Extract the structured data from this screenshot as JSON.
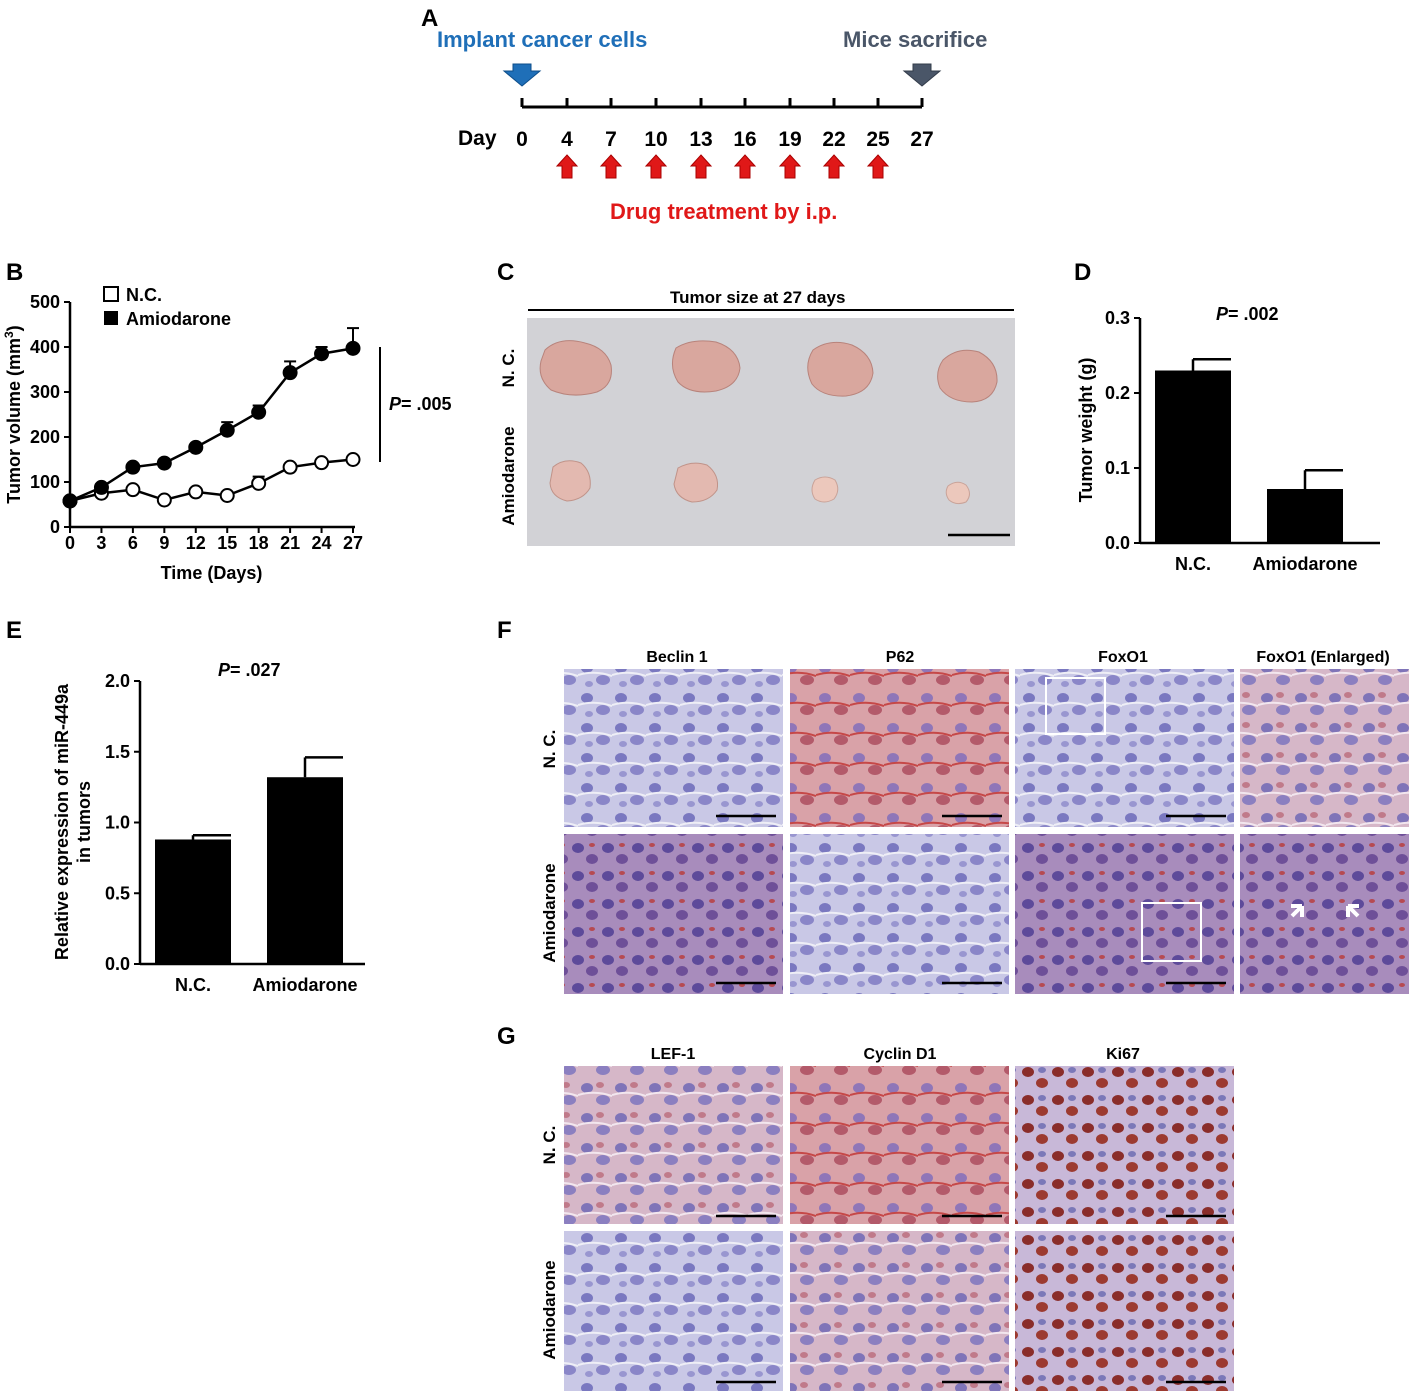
{
  "panel_letters": {
    "a": "A",
    "b": "B",
    "c": "C",
    "d": "D",
    "e": "E",
    "f": "F",
    "g": "G"
  },
  "colors": {
    "implant": "#1f6fb8",
    "sacrifice": "#4a5668",
    "drug": "#e01818",
    "tumor": "#d9a79e",
    "plate": "#d2d2d6"
  },
  "panel_a": {
    "implant_label": "Implant cancer cells",
    "sacrifice_label": "Mice sacrifice",
    "day_label": "Day",
    "days": [
      "0",
      "4",
      "7",
      "10",
      "13",
      "16",
      "19",
      "22",
      "25",
      "27"
    ],
    "drug_label": "Drug treatment by i.p.",
    "drug_days": [
      "4",
      "7",
      "10",
      "13",
      "16",
      "19",
      "22",
      "25"
    ]
  },
  "panel_b": {
    "legend": [
      "N.C.",
      "Amiodarone"
    ],
    "pvalue_prefix": "P",
    "pvalue": "= .005"
  },
  "panel_c": {
    "title": "Tumor size at 27 days",
    "row_labels": [
      "N. C.",
      "Amiodarone"
    ]
  },
  "panel_d": {
    "pvalue_prefix": "P",
    "pvalue": "= .002"
  },
  "panel_e": {
    "pvalue_prefix": "P",
    "pvalue": "= .027"
  },
  "panel_f": {
    "columns": [
      "Beclin 1",
      "P62",
      "FoxO1",
      "FoxO1 (Enlarged)"
    ],
    "rows": [
      "N. C.",
      "Amiodarone"
    ]
  },
  "panel_g": {
    "columns": [
      "LEF-1",
      "Cyclin D1",
      "Ki67"
    ],
    "rows": [
      "N. C.",
      "Amiodarone"
    ]
  },
  "chart_data": [
    {
      "type": "line",
      "panel": "B",
      "title": "",
      "xlabel": "Time (Days)",
      "ylabel": "Tumor volume (mm3)",
      "x": [
        0,
        3,
        6,
        9,
        12,
        15,
        18,
        21,
        24,
        27
      ],
      "xticks": [
        "0",
        "3",
        "6",
        "9",
        "12",
        "15",
        "18",
        "21",
        "24",
        "27"
      ],
      "yticks": [
        "0",
        "100",
        "200",
        "300",
        "400",
        "500"
      ],
      "ylim": [
        0,
        500
      ],
      "series": [
        {
          "name": "N.C.",
          "values": [
            58,
            75,
            83,
            60,
            78,
            70,
            97,
            133,
            143,
            150
          ],
          "err": [
            0,
            0,
            0,
            0,
            0,
            0,
            15,
            0,
            0,
            0
          ],
          "marker": "open"
        },
        {
          "name": "Amiodarone",
          "values": [
            58,
            88,
            133,
            142,
            177,
            215,
            255,
            343,
            385,
            397
          ],
          "err": [
            0,
            0,
            0,
            0,
            0,
            18,
            15,
            25,
            15,
            45
          ],
          "marker": "filled"
        }
      ]
    },
    {
      "type": "bar",
      "panel": "D",
      "title": "",
      "xlabel": "",
      "ylabel": "Tumor weight (g)",
      "categories": [
        "N.C.",
        "Amiodarone"
      ],
      "values": [
        0.23,
        0.072
      ],
      "err": [
        0.015,
        0.025
      ],
      "yticks": [
        "0.0",
        "0.1",
        "0.2",
        "0.3"
      ],
      "ylim": [
        0,
        0.3
      ]
    },
    {
      "type": "bar",
      "panel": "E",
      "title": "",
      "xlabel": "",
      "ylabel": "Relative expression of miR-449a in tumors",
      "ylabel_lines": [
        "Relative expression of miR-449a",
        "in tumors"
      ],
      "categories": [
        "N.C.",
        "Amiodarone"
      ],
      "values": [
        0.88,
        1.32
      ],
      "err": [
        0.03,
        0.14
      ],
      "yticks": [
        "0.0",
        "0.5",
        "1.0",
        "1.5",
        "2.0"
      ],
      "ylim": [
        0,
        2.0
      ]
    }
  ]
}
